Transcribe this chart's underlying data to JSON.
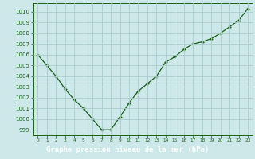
{
  "x": [
    0,
    1,
    2,
    3,
    4,
    5,
    6,
    7,
    8,
    9,
    10,
    11,
    12,
    13,
    14,
    15,
    16,
    17,
    18,
    19,
    20,
    21,
    22,
    23
  ],
  "y": [
    1006.0,
    1005.0,
    1004.0,
    1002.8,
    1001.8,
    1001.0,
    1000.0,
    999.0,
    999.0,
    1000.2,
    1001.5,
    1002.6,
    1003.3,
    1004.0,
    1005.3,
    1005.8,
    1006.5,
    1007.0,
    1007.2,
    1007.5,
    1008.0,
    1008.6,
    1009.2,
    1010.3
  ],
  "xlim": [
    -0.5,
    23.5
  ],
  "ylim": [
    998.5,
    1010.8
  ],
  "yticks": [
    999,
    1000,
    1001,
    1002,
    1003,
    1004,
    1005,
    1006,
    1007,
    1008,
    1009,
    1010
  ],
  "xticks": [
    0,
    1,
    2,
    3,
    4,
    5,
    6,
    7,
    8,
    9,
    10,
    11,
    12,
    13,
    14,
    15,
    16,
    17,
    18,
    19,
    20,
    21,
    22,
    23
  ],
  "line_color": "#1a5e1a",
  "marker_color": "#1a5e1a",
  "bg_color": "#cce8e8",
  "grid_color": "#aacccc",
  "xlabel": "Graphe pression niveau de la mer (hPa)",
  "tick_color": "#1a5e1a",
  "spine_color": "#1a5e1a",
  "bottom_bg": "#005000",
  "label_font_color": "white",
  "label_fontsize": 6.5,
  "tick_fontsize": 5.0,
  "xtick_fontsize": 4.2
}
